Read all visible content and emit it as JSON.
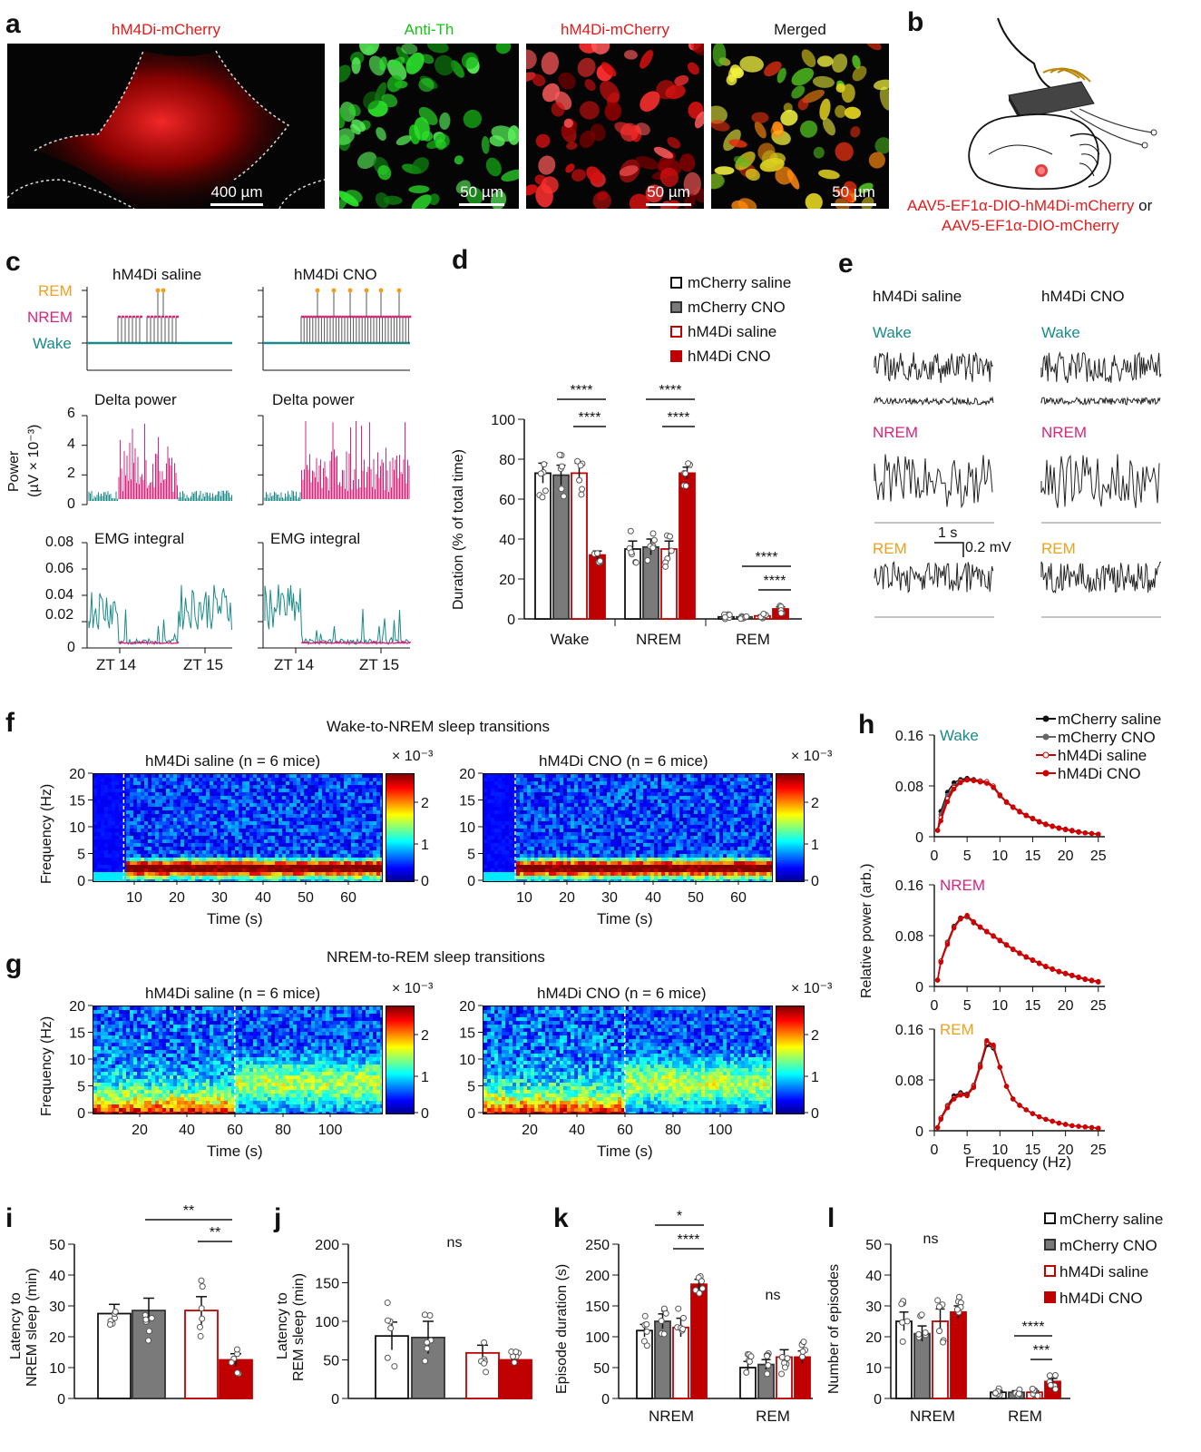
{
  "panel_labels": [
    "a",
    "b",
    "c",
    "d",
    "e",
    "f",
    "g",
    "h",
    "i",
    "j",
    "k",
    "l"
  ],
  "colors": {
    "wake": "#1a8a8a",
    "nrem": "#d6257d",
    "rem": "#f0a01e",
    "mcherry_saline": "#ffffff",
    "mcherry_cno": "#7a7a7a",
    "hm4di_saline": "#ffffff",
    "hm4di_cno": "#c00000",
    "red_text": "#e11b1b",
    "green_text": "#18c418"
  },
  "panel_a": {
    "images": [
      {
        "caption": "hM4Di-mCherry",
        "scale": "400 µm",
        "caption_color": "#e11b1b"
      },
      {
        "caption": "Anti-Th",
        "scale": "50 µm",
        "caption_color": "#18c418"
      },
      {
        "caption": "hM4Di-mCherry",
        "scale": "50 µm",
        "caption_color": "#e11b1b"
      },
      {
        "caption": "Merged",
        "scale": "50 µm",
        "caption_color": "#111111"
      }
    ]
  },
  "panel_b": {
    "virus1": "AAV5-EF1α-DIO-hM4Di-mCherry",
    "or_word": "or",
    "virus2": "AAV5-EF1α-DIO-mCherry"
  },
  "panel_c": {
    "col_titles": [
      "hM4Di saline",
      "hM4Di CNO"
    ],
    "state_labels": [
      "REM",
      "NREM",
      "Wake"
    ],
    "delta_title": "Delta power",
    "delta_ylabel": "Power",
    "delta_ylabel2": "(µV × 10⁻³)",
    "delta_ticks": [
      "6",
      "4",
      "2",
      "0"
    ],
    "emg_title": "EMG integral",
    "emg_ticks": [
      "0.08",
      "0.06",
      "0.04",
      "0.02",
      "0"
    ],
    "x_ticks": [
      "ZT 14",
      "ZT 15"
    ]
  },
  "panel_d": {
    "legend": [
      "mCherry saline",
      "mCherry CNO",
      "hM4Di saline",
      "hM4Di CNO"
    ],
    "ylabel": "Duration (% of total time)",
    "sig": "****"
  },
  "panel_e": {
    "col_titles": [
      "hM4Di saline",
      "hM4Di CNO"
    ],
    "states": [
      "Wake",
      "NREM",
      "REM"
    ],
    "scale_time": "1 s",
    "scale_volt": "0.2 mV"
  },
  "panel_f": {
    "title": "Wake-to-NREM sleep transitions",
    "left_title": "hM4Di saline (n = 6 mice)",
    "right_title": "hM4Di CNO (n = 6 mice)",
    "ylabel": "Frequency (Hz)",
    "xlabel": "Time (s)",
    "y_ticks": [
      "20",
      "15",
      "10",
      "5",
      "0"
    ],
    "x_ticks": [
      "10",
      "20",
      "30",
      "40",
      "50",
      "60"
    ],
    "cb_exp": "× 10⁻³",
    "cb_ticks_left": [
      "2",
      "1",
      "0"
    ],
    "cb_ticks_right": [
      "2",
      "1",
      "0"
    ]
  },
  "panel_g": {
    "title": "NREM-to-REM sleep transitions",
    "left_title": "hM4Di saline (n = 6 mice)",
    "right_title": "hM4Di CNO (n = 6 mice)",
    "ylabel": "Frequency (Hz)",
    "xlabel": "Time (s)",
    "y_ticks": [
      "20",
      "15",
      "10",
      "5",
      "0"
    ],
    "x_ticks": [
      "20",
      "40",
      "60",
      "80",
      "100"
    ],
    "cb_exp": "× 10⁻³",
    "cb_ticks_left": [
      "2",
      "1",
      "0"
    ],
    "cb_ticks_right": [
      "2",
      "1",
      "0"
    ]
  },
  "panel_h": {
    "legend": [
      "mCherry saline",
      "mCherry CNO",
      "hM4Di saline",
      "hM4Di CNO"
    ],
    "ylabel": "Relative power (arb.)",
    "xlabel": "Frequency (Hz)",
    "states": [
      "Wake",
      "NREM",
      "REM"
    ],
    "y_ticks": [
      "0.16",
      "0.08",
      "0"
    ],
    "x_ticks": [
      "0",
      "5",
      "10",
      "15",
      "20",
      "25"
    ]
  },
  "panel_i": {
    "ylabel1": "Latency to",
    "ylabel2": "NREM sleep (min)",
    "sig1": "**",
    "sig2": "**"
  },
  "panel_j": {
    "ylabel1": "Latency to",
    "ylabel2": "REM sleep (min)",
    "sig": "ns"
  },
  "panel_k": {
    "ylabel": "Episode duration (s)",
    "sig1": "*",
    "sig2": "****",
    "sig_rem": "ns",
    "groups": [
      "NREM",
      "REM"
    ]
  },
  "panel_l": {
    "ylabel": "Number of episodes",
    "sig_nrem": "ns",
    "sig1": "****",
    "sig2": "***",
    "groups": [
      "NREM",
      "REM"
    ],
    "legend": [
      "mCherry saline",
      "mCherry CNO",
      "hM4Di saline",
      "hM4Di CNO"
    ]
  },
  "chart_data": [
    {
      "id": "d",
      "type": "bar",
      "categories": [
        "Wake",
        "NREM",
        "REM"
      ],
      "ylim": [
        0,
        100
      ],
      "y_ticks": [
        0,
        20,
        40,
        60,
        80,
        100
      ],
      "series": [
        {
          "name": "mCherry saline",
          "values": [
            73,
            35,
            1
          ],
          "err": [
            5,
            4,
            0.5
          ]
        },
        {
          "name": "mCherry CNO",
          "values": [
            72,
            36,
            1
          ],
          "err": [
            5,
            4,
            0.5
          ]
        },
        {
          "name": "hM4Di saline",
          "values": [
            73,
            35,
            1.5
          ],
          "err": [
            5,
            4,
            0.5
          ]
        },
        {
          "name": "hM4Di CNO",
          "values": [
            32,
            73,
            5
          ],
          "err": [
            2,
            3,
            1
          ]
        }
      ]
    },
    {
      "id": "h",
      "type": "line",
      "x": [
        0.5,
        1,
        2,
        3,
        4,
        5,
        6,
        7,
        8,
        9,
        10,
        11,
        12,
        13,
        14,
        15,
        16,
        17,
        18,
        19,
        20,
        21,
        22,
        23,
        24,
        25
      ],
      "xlim": [
        0,
        26
      ],
      "ylim": [
        0,
        0.16
      ],
      "panels": [
        {
          "state": "Wake",
          "series": [
            {
              "name": "mCherry saline",
              "values": [
                0.01,
                0.04,
                0.07,
                0.085,
                0.09,
                0.092,
                0.09,
                0.088,
                0.086,
                0.078,
                0.065,
                0.055,
                0.047,
                0.04,
                0.034,
                0.029,
                0.024,
                0.02,
                0.017,
                0.014,
                0.012,
                0.01,
                0.008,
                0.006,
                0.005,
                0.004
              ]
            },
            {
              "name": "mCherry CNO",
              "values": [
                0.01,
                0.035,
                0.065,
                0.08,
                0.088,
                0.09,
                0.089,
                0.087,
                0.085,
                0.077,
                0.064,
                0.054,
                0.046,
                0.039,
                0.033,
                0.028,
                0.023,
                0.019,
                0.016,
                0.013,
                0.011,
                0.009,
                0.007,
                0.006,
                0.005,
                0.004
              ]
            },
            {
              "name": "hM4Di saline",
              "values": [
                0.01,
                0.03,
                0.06,
                0.078,
                0.087,
                0.09,
                0.089,
                0.088,
                0.087,
                0.08,
                0.066,
                0.055,
                0.047,
                0.04,
                0.034,
                0.029,
                0.024,
                0.02,
                0.017,
                0.014,
                0.012,
                0.01,
                0.008,
                0.006,
                0.005,
                0.004
              ]
            },
            {
              "name": "hM4Di CNO",
              "values": [
                0.01,
                0.025,
                0.055,
                0.075,
                0.085,
                0.089,
                0.088,
                0.086,
                0.084,
                0.078,
                0.065,
                0.054,
                0.046,
                0.039,
                0.033,
                0.028,
                0.023,
                0.019,
                0.016,
                0.013,
                0.011,
                0.009,
                0.007,
                0.006,
                0.005,
                0.004
              ]
            }
          ]
        },
        {
          "state": "NREM",
          "series": [
            {
              "name": "mCherry saline",
              "values": [
                0.01,
                0.04,
                0.07,
                0.095,
                0.108,
                0.11,
                0.1,
                0.093,
                0.086,
                0.079,
                0.072,
                0.065,
                0.058,
                0.052,
                0.046,
                0.041,
                0.036,
                0.031,
                0.027,
                0.023,
                0.02,
                0.017,
                0.014,
                0.011,
                0.009,
                0.007
              ]
            },
            {
              "name": "mCherry CNO",
              "values": [
                0.01,
                0.04,
                0.07,
                0.094,
                0.107,
                0.109,
                0.1,
                0.093,
                0.086,
                0.079,
                0.072,
                0.065,
                0.058,
                0.052,
                0.046,
                0.041,
                0.036,
                0.031,
                0.027,
                0.023,
                0.02,
                0.017,
                0.014,
                0.011,
                0.009,
                0.007
              ]
            },
            {
              "name": "hM4Di saline",
              "values": [
                0.01,
                0.04,
                0.068,
                0.093,
                0.107,
                0.111,
                0.101,
                0.093,
                0.086,
                0.079,
                0.072,
                0.065,
                0.058,
                0.052,
                0.046,
                0.041,
                0.036,
                0.031,
                0.027,
                0.023,
                0.02,
                0.017,
                0.014,
                0.011,
                0.009,
                0.007
              ]
            },
            {
              "name": "hM4Di CNO",
              "values": [
                0.01,
                0.038,
                0.066,
                0.092,
                0.106,
                0.112,
                0.102,
                0.094,
                0.087,
                0.08,
                0.073,
                0.066,
                0.059,
                0.053,
                0.047,
                0.042,
                0.037,
                0.032,
                0.028,
                0.024,
                0.021,
                0.018,
                0.015,
                0.012,
                0.01,
                0.008
              ]
            }
          ]
        },
        {
          "state": "REM",
          "series": [
            {
              "name": "mCherry saline",
              "values": [
                0.005,
                0.02,
                0.04,
                0.055,
                0.06,
                0.058,
                0.07,
                0.1,
                0.135,
                0.13,
                0.1,
                0.07,
                0.05,
                0.04,
                0.033,
                0.027,
                0.022,
                0.018,
                0.015,
                0.012,
                0.01,
                0.008,
                0.007,
                0.006,
                0.005,
                0.004
              ]
            },
            {
              "name": "mCherry CNO",
              "values": [
                0.005,
                0.02,
                0.04,
                0.05,
                0.058,
                0.057,
                0.072,
                0.105,
                0.14,
                0.132,
                0.1,
                0.07,
                0.05,
                0.04,
                0.033,
                0.027,
                0.022,
                0.018,
                0.015,
                0.012,
                0.01,
                0.008,
                0.007,
                0.006,
                0.005,
                0.004
              ]
            },
            {
              "name": "hM4Di saline",
              "values": [
                0.005,
                0.02,
                0.038,
                0.052,
                0.058,
                0.056,
                0.07,
                0.102,
                0.138,
                0.133,
                0.1,
                0.07,
                0.05,
                0.04,
                0.033,
                0.027,
                0.022,
                0.018,
                0.015,
                0.012,
                0.01,
                0.008,
                0.007,
                0.006,
                0.005,
                0.004
              ]
            },
            {
              "name": "hM4Di CNO",
              "values": [
                0.005,
                0.018,
                0.036,
                0.05,
                0.056,
                0.055,
                0.068,
                0.1,
                0.142,
                0.135,
                0.1,
                0.07,
                0.05,
                0.04,
                0.033,
                0.027,
                0.022,
                0.018,
                0.015,
                0.012,
                0.01,
                0.008,
                0.007,
                0.006,
                0.005,
                0.004
              ]
            }
          ]
        }
      ]
    },
    {
      "id": "i",
      "type": "bar",
      "ylim": [
        0,
        50
      ],
      "y_ticks": [
        0,
        10,
        20,
        30,
        40,
        50
      ],
      "series": [
        {
          "name": "mCherry saline",
          "values": [
            27.5
          ],
          "err": [
            3
          ]
        },
        {
          "name": "mCherry CNO",
          "values": [
            28.5
          ],
          "err": [
            4
          ]
        },
        {
          "name": "hM4Di saline",
          "values": [
            28.5
          ],
          "err": [
            4.5
          ]
        },
        {
          "name": "hM4Di CNO",
          "values": [
            12.5
          ],
          "err": [
            2
          ]
        }
      ]
    },
    {
      "id": "j",
      "type": "bar",
      "ylim": [
        0,
        200
      ],
      "y_ticks": [
        0,
        50,
        100,
        150,
        200
      ],
      "series": [
        {
          "name": "mCherry saline",
          "values": [
            81
          ],
          "err": [
            18
          ]
        },
        {
          "name": "mCherry CNO",
          "values": [
            79
          ],
          "err": [
            21
          ]
        },
        {
          "name": "hM4Di saline",
          "values": [
            59
          ],
          "err": [
            10
          ]
        },
        {
          "name": "hM4Di CNO",
          "values": [
            50
          ],
          "err": [
            8
          ]
        }
      ]
    },
    {
      "id": "k",
      "type": "bar",
      "categories": [
        "NREM",
        "REM"
      ],
      "ylim": [
        0,
        250
      ],
      "y_ticks": [
        0,
        50,
        100,
        150,
        200,
        250
      ],
      "series": [
        {
          "name": "mCherry saline",
          "values": [
            110,
            50
          ],
          "err": [
            10,
            10
          ]
        },
        {
          "name": "mCherry CNO",
          "values": [
            125,
            55
          ],
          "err": [
            12,
            8
          ]
        },
        {
          "name": "hM4Di saline",
          "values": [
            115,
            67
          ],
          "err": [
            15,
            12
          ]
        },
        {
          "name": "hM4Di CNO",
          "values": [
            185,
            67
          ],
          "err": [
            8,
            10
          ]
        }
      ]
    },
    {
      "id": "l",
      "type": "bar",
      "categories": [
        "NREM",
        "REM"
      ],
      "ylim": [
        0,
        50
      ],
      "y_ticks": [
        0,
        10,
        20,
        30,
        40,
        50
      ],
      "series": [
        {
          "name": "mCherry saline",
          "values": [
            25,
            2
          ],
          "err": [
            3,
            0.5
          ]
        },
        {
          "name": "mCherry CNO",
          "values": [
            21,
            2
          ],
          "err": [
            2.5,
            0.5
          ]
        },
        {
          "name": "hM4Di saline",
          "values": [
            25,
            2
          ],
          "err": [
            4,
            0.5
          ]
        },
        {
          "name": "hM4Di CNO",
          "values": [
            28,
            5.5
          ],
          "err": [
            2,
            1
          ]
        }
      ]
    }
  ]
}
